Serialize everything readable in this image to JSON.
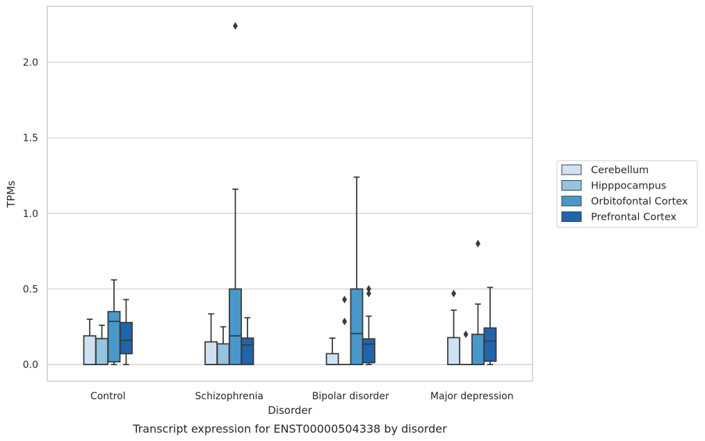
{
  "chart_data": {
    "type": "box",
    "title": "",
    "caption": "Transcript expression for ENST00000504338 by disorder",
    "xlabel": "Disorder",
    "ylabel": "TPMs",
    "ylim": [
      -0.11,
      2.37
    ],
    "yticks": [
      "0.0",
      "0.5",
      "1.0",
      "1.5",
      "2.0"
    ],
    "grid": "horizontal",
    "legend_position": "right",
    "categories": [
      "Control",
      "Schizophrenia",
      "Bipolar disorder",
      "Major depression"
    ],
    "series": [
      {
        "name": "Cerebellum",
        "color": "#d0e1f2",
        "boxes": [
          {
            "whisker_low": 0.0,
            "q1": 0.0,
            "median": 0.0,
            "q3": 0.19,
            "whisker_high": 0.3,
            "outliers": []
          },
          {
            "whisker_low": 0.0,
            "q1": 0.0,
            "median": 0.0,
            "q3": 0.15,
            "whisker_high": 0.335,
            "outliers": []
          },
          {
            "whisker_low": 0.0,
            "q1": 0.0,
            "median": 0.0,
            "q3": 0.072,
            "whisker_high": 0.175,
            "outliers": []
          },
          {
            "whisker_low": 0.0,
            "q1": 0.0,
            "median": 0.0,
            "q3": 0.178,
            "whisker_high": 0.36,
            "outliers": [
              0.47
            ]
          }
        ]
      },
      {
        "name": "Hipppocampus",
        "color": "#94c4df",
        "boxes": [
          {
            "whisker_low": 0.0,
            "q1": 0.0,
            "median": 0.0,
            "q3": 0.172,
            "whisker_high": 0.26,
            "outliers": []
          },
          {
            "whisker_low": 0.0,
            "q1": 0.0,
            "median": 0.0,
            "q3": 0.137,
            "whisker_high": 0.25,
            "outliers": []
          },
          {
            "whisker_low": 0.0,
            "q1": 0.0,
            "median": 0.0,
            "q3": 0.0,
            "whisker_high": 0.0,
            "outliers": [
              0.285,
              0.43
            ]
          },
          {
            "whisker_low": 0.0,
            "q1": 0.0,
            "median": 0.0,
            "q3": 0.0,
            "whisker_high": 0.0,
            "outliers": [
              0.2
            ]
          }
        ]
      },
      {
        "name": "Orbitofontal Cortex",
        "color": "#4a98c9",
        "boxes": [
          {
            "whisker_low": 0.0,
            "q1": 0.018,
            "median": 0.285,
            "q3": 0.35,
            "whisker_high": 0.56,
            "outliers": []
          },
          {
            "whisker_low": 0.0,
            "q1": 0.0,
            "median": 0.19,
            "q3": 0.5,
            "whisker_high": 1.16,
            "outliers": [
              2.24
            ]
          },
          {
            "whisker_low": 0.0,
            "q1": 0.0,
            "median": 0.205,
            "q3": 0.5,
            "whisker_high": 1.24,
            "outliers": []
          },
          {
            "whisker_low": 0.0,
            "q1": 0.0,
            "median": 0.0,
            "q3": 0.2,
            "whisker_high": 0.4,
            "outliers": [
              0.8
            ]
          }
        ]
      },
      {
        "name": "Prefrontal Cortex",
        "color": "#2164ab",
        "boxes": [
          {
            "whisker_low": 0.0,
            "q1": 0.072,
            "median": 0.16,
            "q3": 0.278,
            "whisker_high": 0.43,
            "outliers": []
          },
          {
            "whisker_low": 0.0,
            "q1": 0.0,
            "median": 0.13,
            "q3": 0.175,
            "whisker_high": 0.31,
            "outliers": []
          },
          {
            "whisker_low": 0.0,
            "q1": 0.012,
            "median": 0.135,
            "q3": 0.17,
            "whisker_high": 0.32,
            "outliers": [
              0.47,
              0.5
            ]
          },
          {
            "whisker_low": 0.0,
            "q1": 0.022,
            "median": 0.155,
            "q3": 0.242,
            "whisker_high": 0.51,
            "outliers": []
          }
        ]
      }
    ]
  }
}
